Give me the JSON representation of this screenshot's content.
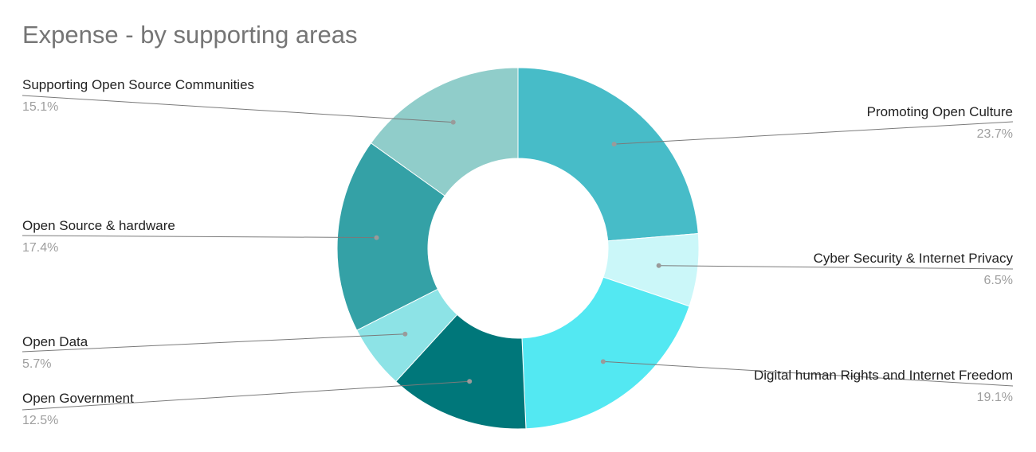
{
  "chart_data": {
    "type": "pie",
    "title": "Expense - by supporting areas",
    "donut": true,
    "legend": "none",
    "slices": [
      {
        "label": "Promoting Open Culture",
        "value": 23.7,
        "percent_label": "23.7%",
        "color": "#47bcc8"
      },
      {
        "label": "Cyber Security & Internet Privacy",
        "value": 6.5,
        "percent_label": "6.5%",
        "color": "#cbf7f9"
      },
      {
        "label": "Digital human Rights and Internet Freedom",
        "value": 19.1,
        "percent_label": "19.1%",
        "color": "#53e8f2"
      },
      {
        "label": "Open Government",
        "value": 12.5,
        "percent_label": "12.5%",
        "color": "#00777a"
      },
      {
        "label": "Open Data",
        "value": 5.7,
        "percent_label": "5.7%",
        "color": "#8de3e6"
      },
      {
        "label": "Open Source & hardware",
        "value": 17.4,
        "percent_label": "17.4%",
        "color": "#34a1a6"
      },
      {
        "label": "Supporting Open Source Communities",
        "value": 15.1,
        "percent_label": "15.1%",
        "color": "#90cdca"
      }
    ]
  }
}
